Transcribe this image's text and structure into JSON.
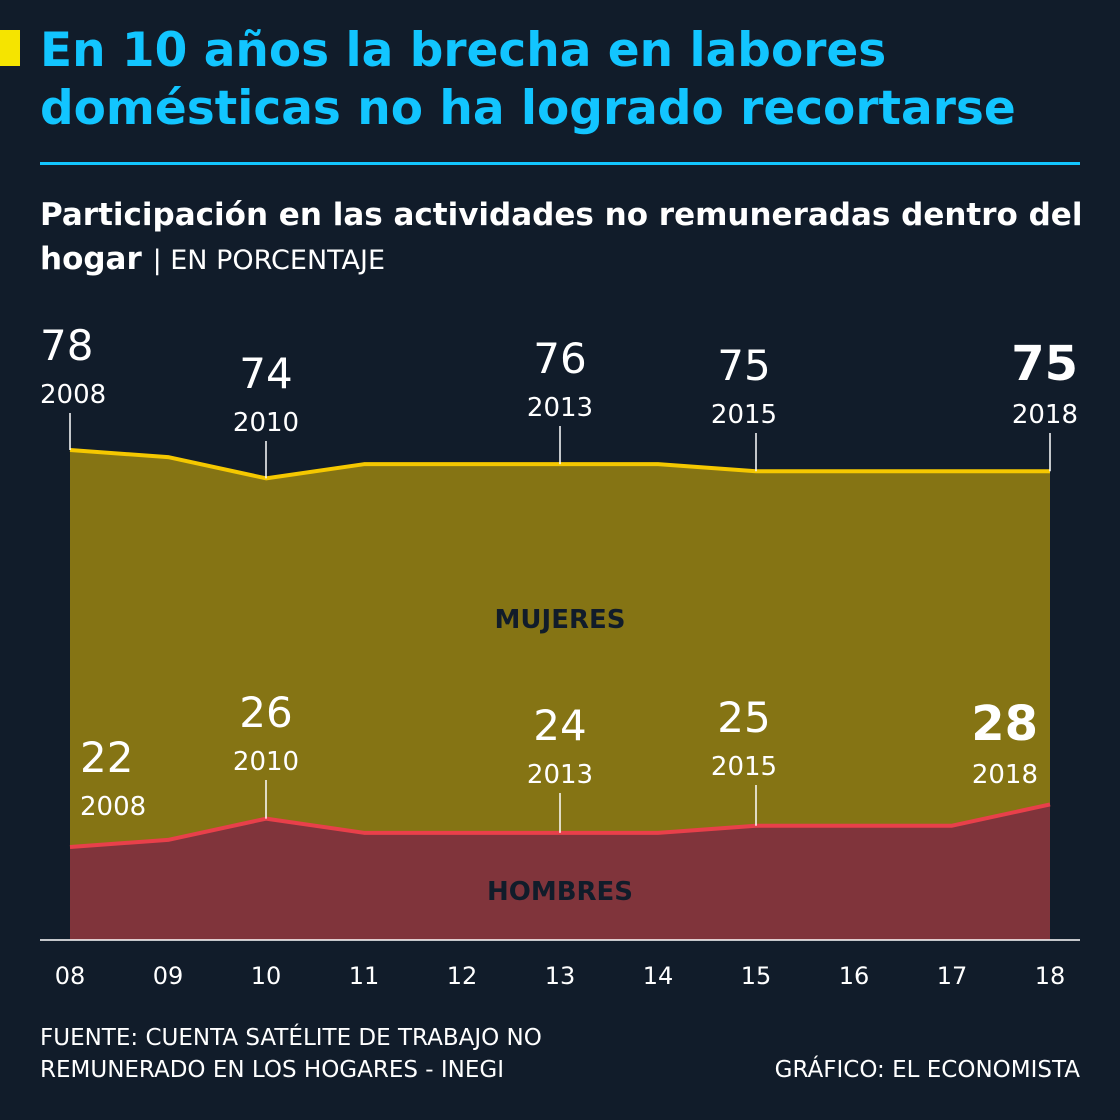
{
  "title": "En 10 años la brecha en labores domésticas no ha logrado recortarse",
  "subtitle": "Participación en las actividades no remuneradas dentro del hogar",
  "unit_label": "| EN PORCENTAJE",
  "source": "FUENTE: CUENTA SATÉLITE DE TRABAJO NO REMUNERADO EN LOS HOGARES - INEGI",
  "credit": "GRÁFICO: EL ECONOMISTA",
  "colors": {
    "background": "#111c2a",
    "title": "#12c5ff",
    "mujeres_fill": "#857414",
    "mujeres_line": "#f5c800",
    "hombres_fill": "#80343b",
    "hombres_line": "#e8404a",
    "area_label": "#111c2a",
    "text": "#ffffff"
  },
  "chart_data": {
    "type": "area",
    "x": [
      "08",
      "09",
      "10",
      "11",
      "12",
      "13",
      "14",
      "15",
      "16",
      "17",
      "18"
    ],
    "ylim": [
      0,
      100
    ],
    "series": [
      {
        "name": "MUJERES",
        "values": [
          78,
          77,
          74,
          76,
          76,
          76,
          76,
          75,
          75,
          75,
          75
        ],
        "callouts": [
          {
            "index": 0,
            "value": "78",
            "year": "2008",
            "bold": false
          },
          {
            "index": 2,
            "value": "74",
            "year": "2010",
            "bold": false
          },
          {
            "index": 5,
            "value": "76",
            "year": "2013",
            "bold": false
          },
          {
            "index": 7,
            "value": "75",
            "year": "2015",
            "bold": false
          },
          {
            "index": 10,
            "value": "75",
            "year": "2018",
            "bold": true
          }
        ]
      },
      {
        "name": "HOMBRES",
        "values": [
          22,
          23,
          26,
          24,
          24,
          24,
          24,
          25,
          25,
          25,
          28
        ],
        "callouts": [
          {
            "index": 0,
            "value": "22",
            "year": "2008",
            "bold": false
          },
          {
            "index": 2,
            "value": "26",
            "year": "2010",
            "bold": false
          },
          {
            "index": 5,
            "value": "24",
            "year": "2013",
            "bold": false
          },
          {
            "index": 7,
            "value": "25",
            "year": "2015",
            "bold": false
          },
          {
            "index": 10,
            "value": "28",
            "year": "2018",
            "bold": true
          }
        ]
      }
    ]
  }
}
